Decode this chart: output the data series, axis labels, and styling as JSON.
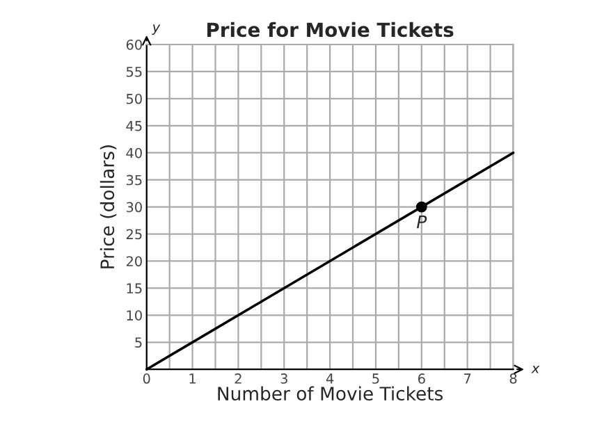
{
  "chart_data": {
    "type": "line",
    "title": "Price for Movie Tickets",
    "xlabel": "Number of Movie Tickets",
    "ylabel": "Price (dollars)",
    "series": [
      {
        "x": [
          0,
          8
        ],
        "values": [
          0,
          40
        ],
        "color": "#000000",
        "marker": "none"
      },
      {
        "type": "scatter",
        "x": [
          6
        ],
        "values": [
          30
        ],
        "color": "#000000",
        "marker": "circle"
      }
    ],
    "annotations": [
      {
        "text": "P",
        "x": 6,
        "y": 30
      },
      "x",
      "y"
    ],
    "xlim": [
      0,
      8
    ],
    "ylim": [
      0,
      60
    ],
    "xticks": [
      0,
      {
        "value": 0.5,
        "label": null
      },
      1,
      {
        "value": 1.5,
        "label": null
      },
      2,
      {
        "value": 2.5,
        "label": null
      },
      3,
      {
        "value": 3.5,
        "label": null
      },
      4,
      {
        "value": 4.5,
        "label": null
      },
      5,
      {
        "value": 5.5,
        "label": null
      },
      6,
      {
        "value": 6.5,
        "label": null
      },
      7,
      {
        "value": 7.5,
        "label": null
      },
      8
    ],
    "yticks": [
      5,
      10,
      15,
      20,
      25,
      30,
      35,
      40,
      45,
      50,
      55,
      60
    ],
    "grid": true
  }
}
